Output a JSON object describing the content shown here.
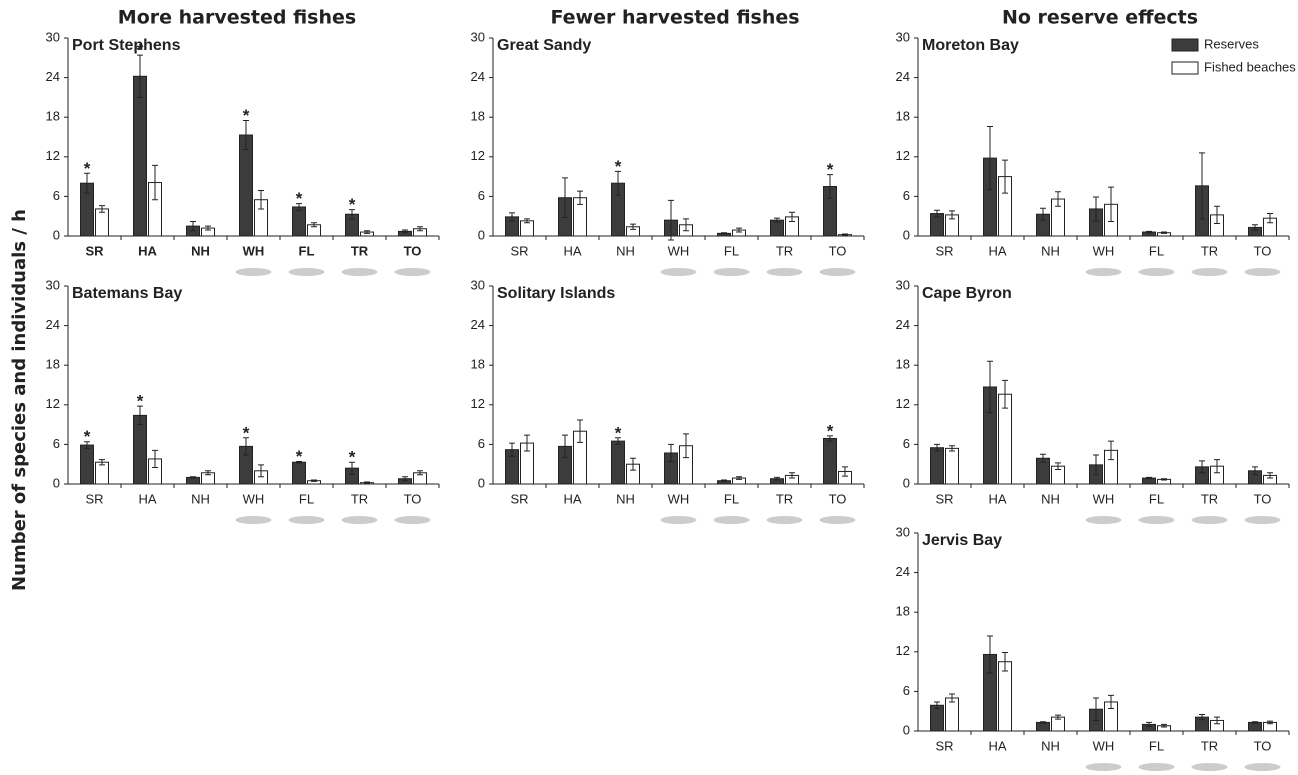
{
  "headings": [
    "More harvested fishes",
    "Fewer harvested fishes",
    "No reserve effects"
  ],
  "y_label": "Number of species and individuals / h",
  "chart_data": [
    {
      "type": "bar",
      "title": "Port Stephens",
      "categories": [
        "SR",
        "HA",
        "NH",
        "WH",
        "FL",
        "TR",
        "TO"
      ],
      "series": [
        {
          "name": "Reserves",
          "color": "#3c3c3c",
          "values": [
            8.0,
            24.2,
            1.5,
            15.3,
            4.4,
            3.3,
            0.7
          ],
          "errors": [
            1.5,
            3.2,
            0.7,
            2.2,
            0.5,
            0.7,
            0.2
          ]
        },
        {
          "name": "Fished beaches",
          "color": "#ffffff",
          "values": [
            4.1,
            8.1,
            1.2,
            5.5,
            1.7,
            0.6,
            1.1
          ],
          "errors": [
            0.5,
            2.6,
            0.3,
            1.4,
            0.3,
            0.2,
            0.3
          ]
        }
      ],
      "significance": [
        "*",
        "*",
        null,
        "*",
        "*",
        "*",
        null
      ],
      "ylim": [
        0,
        30
      ],
      "yticks": [
        0,
        6,
        12,
        18,
        24,
        30
      ]
    },
    {
      "type": "bar",
      "title": "Great Sandy",
      "categories": [
        "SR",
        "HA",
        "NH",
        "WH",
        "FL",
        "TR",
        "TO"
      ],
      "series": [
        {
          "name": "Reserves",
          "color": "#3c3c3c",
          "values": [
            2.9,
            5.8,
            8.0,
            2.4,
            0.4,
            2.4,
            7.5
          ],
          "errors": [
            0.6,
            3.0,
            1.8,
            3.0,
            0.1,
            0.3,
            1.8
          ]
        },
        {
          "name": "Fished beaches",
          "color": "#ffffff",
          "values": [
            2.3,
            5.8,
            1.4,
            1.7,
            0.9,
            2.9,
            0.2
          ],
          "errors": [
            0.3,
            1.0,
            0.4,
            0.9,
            0.3,
            0.7,
            0.1
          ]
        }
      ],
      "significance": [
        null,
        null,
        "*",
        null,
        null,
        null,
        "*"
      ],
      "ylim": [
        0,
        30
      ],
      "yticks": [
        0,
        6,
        12,
        18,
        24,
        30
      ]
    },
    {
      "type": "bar",
      "title": "Moreton Bay",
      "categories": [
        "SR",
        "HA",
        "NH",
        "WH",
        "FL",
        "TR",
        "TO"
      ],
      "series": [
        {
          "name": "Reserves",
          "color": "#3c3c3c",
          "values": [
            3.4,
            11.8,
            3.3,
            4.1,
            0.6,
            7.6,
            1.3
          ],
          "errors": [
            0.5,
            4.8,
            0.9,
            1.8,
            0.1,
            5.0,
            0.4
          ]
        },
        {
          "name": "Fished beaches",
          "color": "#ffffff",
          "values": [
            3.2,
            9.0,
            5.6,
            4.8,
            0.5,
            3.2,
            2.7
          ],
          "errors": [
            0.6,
            2.5,
            1.1,
            2.6,
            0.1,
            1.3,
            0.7
          ]
        }
      ],
      "ylim": [
        0,
        30
      ],
      "yticks": [
        0,
        6,
        12,
        18,
        24,
        30
      ],
      "legend": "upper right"
    },
    {
      "type": "bar",
      "title": "Batemans Bay",
      "categories": [
        "SR",
        "HA",
        "NH",
        "WH",
        "FL",
        "TR",
        "TO"
      ],
      "series": [
        {
          "name": "Reserves",
          "color": "#3c3c3c",
          "values": [
            5.9,
            10.4,
            1.0,
            5.7,
            3.3,
            2.4,
            0.8
          ],
          "errors": [
            0.5,
            1.4,
            0.1,
            1.3,
            0.1,
            0.9,
            0.3
          ]
        },
        {
          "name": "Fished beaches",
          "color": "#ffffff",
          "values": [
            3.3,
            3.8,
            1.7,
            2.0,
            0.5,
            0.2,
            1.7
          ],
          "errors": [
            0.4,
            1.3,
            0.3,
            0.9,
            0.1,
            0.1,
            0.3
          ]
        }
      ],
      "significance": [
        "*",
        "*",
        null,
        "*",
        "*",
        "*",
        null
      ],
      "ylim": [
        0,
        30
      ],
      "yticks": [
        0,
        6,
        12,
        18,
        24,
        30
      ]
    },
    {
      "type": "bar",
      "title": "Solitary Islands",
      "categories": [
        "SR",
        "HA",
        "NH",
        "WH",
        "FL",
        "TR",
        "TO"
      ],
      "series": [
        {
          "name": "Reserves",
          "color": "#3c3c3c",
          "values": [
            5.2,
            5.7,
            6.5,
            4.7,
            0.5,
            0.8,
            6.9
          ],
          "errors": [
            1.0,
            1.7,
            0.5,
            1.3,
            0.1,
            0.2,
            0.4
          ]
        },
        {
          "name": "Fished beaches",
          "color": "#ffffff",
          "values": [
            6.2,
            8.0,
            3.0,
            5.8,
            0.9,
            1.3,
            1.9
          ],
          "errors": [
            1.2,
            1.7,
            0.9,
            1.8,
            0.2,
            0.4,
            0.7
          ]
        }
      ],
      "significance": [
        null,
        null,
        "*",
        null,
        null,
        null,
        "*"
      ],
      "ylim": [
        0,
        30
      ],
      "yticks": [
        0,
        6,
        12,
        18,
        24,
        30
      ]
    },
    {
      "type": "bar",
      "title": "Cape Byron",
      "categories": [
        "SR",
        "HA",
        "NH",
        "WH",
        "FL",
        "TR",
        "TO"
      ],
      "series": [
        {
          "name": "Reserves",
          "color": "#3c3c3c",
          "values": [
            5.5,
            14.7,
            3.9,
            2.9,
            0.9,
            2.6,
            2.0
          ],
          "errors": [
            0.5,
            3.9,
            0.6,
            1.5,
            0.1,
            0.9,
            0.6
          ]
        },
        {
          "name": "Fished beaches",
          "color": "#ffffff",
          "values": [
            5.4,
            13.6,
            2.7,
            5.1,
            0.7,
            2.7,
            1.3
          ],
          "errors": [
            0.4,
            2.1,
            0.5,
            1.4,
            0.1,
            1.0,
            0.4
          ]
        }
      ],
      "ylim": [
        0,
        30
      ],
      "yticks": [
        0,
        6,
        12,
        18,
        24,
        30
      ]
    },
    {
      "type": "bar",
      "title": "Jervis Bay",
      "categories": [
        "SR",
        "HA",
        "NH",
        "WH",
        "FL",
        "TR",
        "TO"
      ],
      "series": [
        {
          "name": "Reserves",
          "color": "#3c3c3c",
          "values": [
            3.9,
            11.6,
            1.3,
            3.3,
            1.0,
            2.1,
            1.3
          ],
          "errors": [
            0.5,
            2.8,
            0.1,
            1.7,
            0.3,
            0.4,
            0.1
          ]
        },
        {
          "name": "Fished beaches",
          "color": "#ffffff",
          "values": [
            5.0,
            10.5,
            2.1,
            4.4,
            0.8,
            1.6,
            1.3
          ],
          "errors": [
            0.6,
            1.4,
            0.3,
            1.0,
            0.2,
            0.5,
            0.2
          ]
        }
      ],
      "ylim": [
        0,
        30
      ],
      "yticks": [
        0,
        6,
        12,
        18,
        24,
        30
      ]
    }
  ]
}
